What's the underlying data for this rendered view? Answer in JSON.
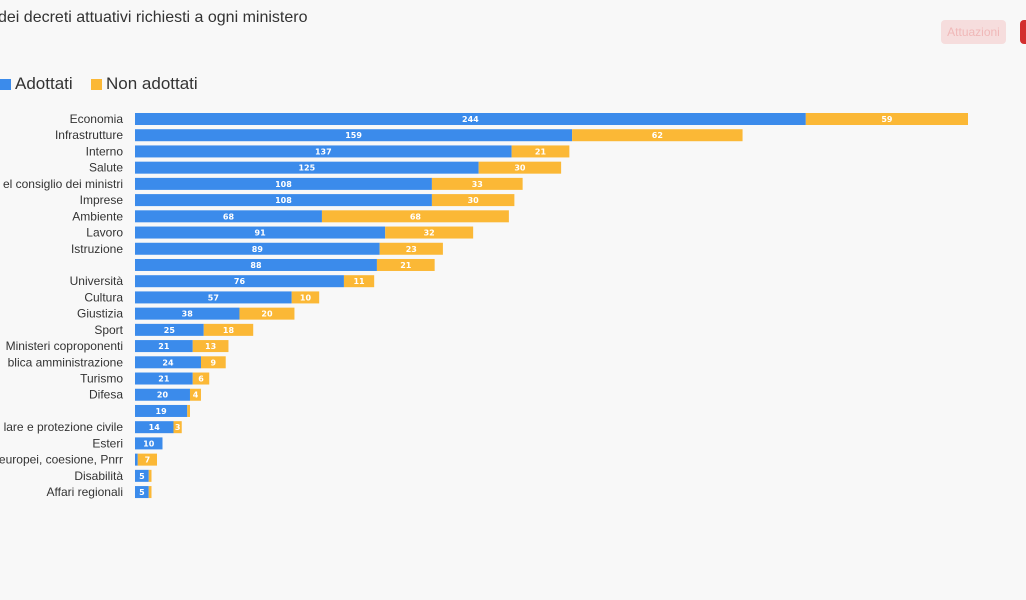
{
  "header": {
    "title": "dei decreti attuativi richiesti a ogni ministero",
    "tabs": [
      {
        "label": "Attuazioni",
        "active": false
      },
      {
        "label": "",
        "active": true
      }
    ]
  },
  "colors": {
    "adottati": "#3b8beb",
    "non_adottati": "#fbb836",
    "accent": "#d32f2f"
  },
  "chart_data": {
    "type": "bar",
    "orientation": "horizontal",
    "stacked": true,
    "legend_position": "top-left",
    "categories": [
      "Economia",
      "Infrastrutture",
      "Interno",
      "Salute",
      "el consiglio dei ministri",
      "Imprese",
      "Ambiente",
      "Lavoro",
      "Istruzione",
      "",
      "Università",
      "Cultura",
      "Giustizia",
      "Sport",
      "Ministeri coproponenti",
      "blica amministrazione",
      "Turismo",
      "Difesa",
      "",
      "lare e protezione civile",
      "Esteri",
      "europei, coesione, Pnrr",
      "Disabilità",
      "Affari regionali"
    ],
    "series": [
      {
        "name": "Adottati",
        "color": "#3b8beb",
        "values": [
          244,
          159,
          137,
          125,
          108,
          108,
          68,
          91,
          89,
          88,
          76,
          57,
          38,
          25,
          21,
          24,
          21,
          20,
          19,
          14,
          10,
          1,
          5,
          5
        ]
      },
      {
        "name": "Non adottati",
        "color": "#fbb836",
        "values": [
          59,
          62,
          21,
          30,
          33,
          30,
          68,
          32,
          23,
          21,
          11,
          10,
          20,
          18,
          13,
          9,
          6,
          4,
          1,
          3,
          0,
          7,
          1,
          1
        ]
      }
    ],
    "xlim": [
      0,
      303
    ]
  }
}
